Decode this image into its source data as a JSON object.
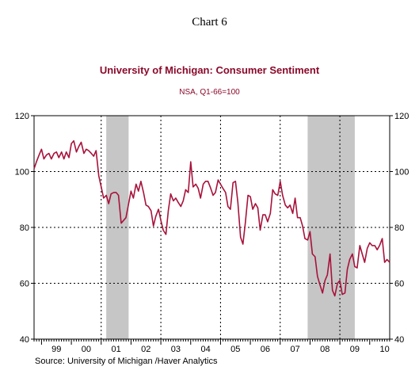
{
  "header": {
    "chart_number": "Chart 6",
    "title": "University of Michigan: Consumer Sentiment",
    "subtitle": "NSA, Q1-66=100"
  },
  "footer": {
    "source": "Source:  University of Michigan /Haver Analytics"
  },
  "colors": {
    "title": "#8B0A2B",
    "subtitle": "#8B0A2B",
    "line": "#A8123B",
    "recession": "#C6C6C6",
    "axis_text": "#000000",
    "grid": "#000000"
  },
  "chart_data": {
    "type": "line",
    "title": "University of Michigan: Consumer Sentiment",
    "subtitle": "NSA, Q1-66=100",
    "xlabel": "",
    "ylabel": "",
    "x_tick_labels": [
      "99",
      "00",
      "01",
      "02",
      "03",
      "04",
      "05",
      "06",
      "07",
      "08",
      "09",
      "10"
    ],
    "xlim": [
      1998.75,
      2010.67
    ],
    "ylim": [
      40,
      120
    ],
    "y_ticks": [
      40,
      60,
      80,
      100,
      120
    ],
    "y_axis": "both sides",
    "grid": "dotted horizontal at 60, 80, 100; dotted vertical every two years",
    "recessions": [
      {
        "start": 2001.17,
        "end": 2001.92
      },
      {
        "start": 2007.92,
        "end": 2009.5
      }
    ],
    "series": [
      {
        "values": [
          [
            1998.75,
            101
          ],
          [
            1998.83,
            103.5
          ],
          [
            1998.92,
            106
          ],
          [
            1999.0,
            108
          ],
          [
            1999.08,
            104.5
          ],
          [
            1999.17,
            106
          ],
          [
            1999.25,
            106.5
          ],
          [
            1999.33,
            104.5
          ],
          [
            1999.42,
            106.5
          ],
          [
            1999.5,
            107
          ],
          [
            1999.58,
            105
          ],
          [
            1999.67,
            107
          ],
          [
            1999.75,
            104.5
          ],
          [
            1999.83,
            107
          ],
          [
            1999.92,
            105
          ],
          [
            2000.0,
            110
          ],
          [
            2000.08,
            111
          ],
          [
            2000.17,
            107
          ],
          [
            2000.25,
            109
          ],
          [
            2000.33,
            110.5
          ],
          [
            2000.42,
            106.5
          ],
          [
            2000.5,
            108
          ],
          [
            2000.58,
            107.5
          ],
          [
            2000.67,
            106.5
          ],
          [
            2000.75,
            105.5
          ],
          [
            2000.83,
            107.5
          ],
          [
            2000.92,
            98.5
          ],
          [
            2001.0,
            94.5
          ],
          [
            2001.08,
            90.5
          ],
          [
            2001.17,
            91.5
          ],
          [
            2001.25,
            88.5
          ],
          [
            2001.33,
            92
          ],
          [
            2001.42,
            92.5
          ],
          [
            2001.5,
            92.5
          ],
          [
            2001.58,
            91.5
          ],
          [
            2001.67,
            81.5
          ],
          [
            2001.75,
            82.5
          ],
          [
            2001.83,
            83.5
          ],
          [
            2001.92,
            88.5
          ],
          [
            2002.0,
            93
          ],
          [
            2002.08,
            90.5
          ],
          [
            2002.17,
            95.5
          ],
          [
            2002.25,
            93
          ],
          [
            2002.33,
            96.5
          ],
          [
            2002.42,
            92.5
          ],
          [
            2002.5,
            88
          ],
          [
            2002.58,
            87.5
          ],
          [
            2002.67,
            86
          ],
          [
            2002.75,
            80.5
          ],
          [
            2002.83,
            84
          ],
          [
            2002.92,
            86.5
          ],
          [
            2003.0,
            82.5
          ],
          [
            2003.08,
            79
          ],
          [
            2003.17,
            77.5
          ],
          [
            2003.25,
            86
          ],
          [
            2003.33,
            92
          ],
          [
            2003.42,
            89.5
          ],
          [
            2003.5,
            90.5
          ],
          [
            2003.58,
            89
          ],
          [
            2003.67,
            87.5
          ],
          [
            2003.75,
            89.5
          ],
          [
            2003.83,
            93.5
          ],
          [
            2003.92,
            92.5
          ],
          [
            2004.0,
            103.5
          ],
          [
            2004.08,
            94.5
          ],
          [
            2004.17,
            95.5
          ],
          [
            2004.25,
            94
          ],
          [
            2004.33,
            90.5
          ],
          [
            2004.42,
            95.5
          ],
          [
            2004.5,
            96.5
          ],
          [
            2004.58,
            96.5
          ],
          [
            2004.67,
            94
          ],
          [
            2004.75,
            91.5
          ],
          [
            2004.83,
            92.5
          ],
          [
            2004.92,
            97
          ],
          [
            2005.0,
            95.5
          ],
          [
            2005.08,
            94
          ],
          [
            2005.17,
            92.5
          ],
          [
            2005.25,
            87.5
          ],
          [
            2005.33,
            86.5
          ],
          [
            2005.42,
            96
          ],
          [
            2005.5,
            96.5
          ],
          [
            2005.58,
            89
          ],
          [
            2005.67,
            76.5
          ],
          [
            2005.75,
            74
          ],
          [
            2005.83,
            81.5
          ],
          [
            2005.92,
            91.5
          ],
          [
            2006.0,
            91
          ],
          [
            2006.08,
            86.5
          ],
          [
            2006.17,
            88.5
          ],
          [
            2006.25,
            87
          ],
          [
            2006.33,
            79
          ],
          [
            2006.42,
            84.5
          ],
          [
            2006.5,
            84.5
          ],
          [
            2006.58,
            82
          ],
          [
            2006.67,
            85
          ],
          [
            2006.75,
            93.5
          ],
          [
            2006.83,
            92
          ],
          [
            2006.92,
            91.5
          ],
          [
            2007.0,
            96.5
          ],
          [
            2007.08,
            91.5
          ],
          [
            2007.17,
            88
          ],
          [
            2007.25,
            87
          ],
          [
            2007.33,
            88
          ],
          [
            2007.42,
            85
          ],
          [
            2007.5,
            90.5
          ],
          [
            2007.58,
            83.5
          ],
          [
            2007.67,
            83.5
          ],
          [
            2007.75,
            80.5
          ],
          [
            2007.83,
            76
          ],
          [
            2007.92,
            75.5
          ],
          [
            2008.0,
            78.5
          ],
          [
            2008.08,
            70.5
          ],
          [
            2008.17,
            69.5
          ],
          [
            2008.25,
            62.5
          ],
          [
            2008.33,
            59.5
          ],
          [
            2008.42,
            56.5
          ],
          [
            2008.5,
            61
          ],
          [
            2008.58,
            63
          ],
          [
            2008.67,
            70.5
          ],
          [
            2008.75,
            57.5
          ],
          [
            2008.83,
            55.5
          ],
          [
            2008.92,
            60
          ],
          [
            2009.0,
            61
          ],
          [
            2009.08,
            56
          ],
          [
            2009.17,
            56.5
          ],
          [
            2009.25,
            65
          ],
          [
            2009.33,
            68.5
          ],
          [
            2009.42,
            70.5
          ],
          [
            2009.5,
            66
          ],
          [
            2009.58,
            65.5
          ],
          [
            2009.67,
            73.5
          ],
          [
            2009.75,
            70.5
          ],
          [
            2009.83,
            67.5
          ],
          [
            2009.92,
            72.5
          ],
          [
            2010.0,
            74.5
          ],
          [
            2010.08,
            73.5
          ],
          [
            2010.17,
            73.5
          ],
          [
            2010.25,
            72
          ],
          [
            2010.33,
            73.5
          ],
          [
            2010.42,
            76
          ],
          [
            2010.5,
            67.5
          ],
          [
            2010.58,
            68.5
          ],
          [
            2010.67,
            67.5
          ]
        ]
      }
    ]
  }
}
